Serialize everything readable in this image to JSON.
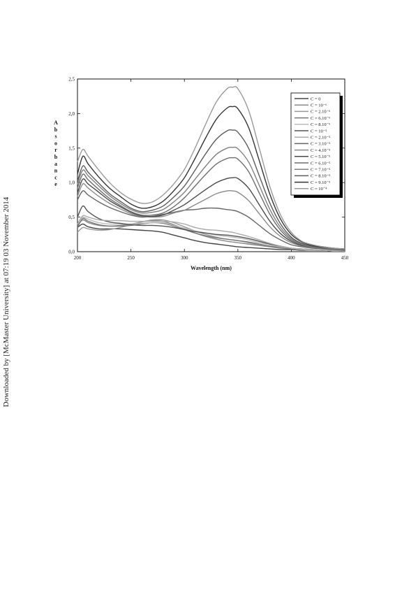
{
  "side_note": "Downloaded by [McMaster University] at 07:19 03 November 2014",
  "chart_data": {
    "type": "line",
    "title": "",
    "xlabel": "Wavelength (nm)",
    "ylabel": "Absorbance",
    "xlim": [
      200,
      450
    ],
    "ylim": [
      0,
      2.5
    ],
    "x_ticks": [
      200,
      250,
      300,
      350,
      400,
      450
    ],
    "y_ticks": [
      0,
      0.5,
      1.0,
      1.5,
      2.0,
      2.5
    ],
    "y_tick_labels": [
      "0,0",
      "0,5",
      "1,0",
      "1,5",
      "2,0",
      "2,5"
    ],
    "grid": false,
    "legend_position": "top-right",
    "legend": [
      "C = 0",
      "C = 10⁻⁶",
      "C = 2.10⁻⁶",
      "C = 6.10⁻⁶",
      "C = 8.10⁻⁶",
      "C = 10⁻⁵",
      "C = 2.10⁻⁵",
      "C = 3.10⁻⁵",
      "C = 4.10⁻⁵",
      "C = 5.10⁻⁵",
      "C = 6.10⁻⁵",
      "C = 7.10⁻⁵",
      "C = 8.10⁻⁵",
      "C = 9.10⁻⁵",
      "C = 10⁻⁴"
    ],
    "x": [
      200,
      205,
      210,
      220,
      230,
      240,
      250,
      260,
      270,
      280,
      290,
      300,
      310,
      320,
      330,
      340,
      345,
      350,
      360,
      370,
      380,
      390,
      400,
      410,
      420,
      430,
      440,
      450
    ],
    "series": [
      {
        "name": "C = 0",
        "color": "#444444",
        "values": [
          0.35,
          0.4,
          0.36,
          0.33,
          0.33,
          0.33,
          0.32,
          0.31,
          0.3,
          0.28,
          0.24,
          0.2,
          0.16,
          0.13,
          0.11,
          0.09,
          0.08,
          0.07,
          0.06,
          0.05,
          0.04,
          0.03,
          0.03,
          0.02,
          0.02,
          0.02,
          0.01,
          0.01
        ]
      },
      {
        "name": "C = 10⁻⁶",
        "color": "#888888",
        "values": [
          0.38,
          0.46,
          0.42,
          0.38,
          0.37,
          0.38,
          0.4,
          0.43,
          0.45,
          0.44,
          0.39,
          0.33,
          0.27,
          0.22,
          0.18,
          0.15,
          0.14,
          0.13,
          0.11,
          0.09,
          0.07,
          0.05,
          0.04,
          0.03,
          0.02,
          0.02,
          0.01,
          0.01
        ]
      },
      {
        "name": "C = 2.10⁻⁶",
        "color": "#999999",
        "values": [
          0.28,
          0.35,
          0.33,
          0.31,
          0.32,
          0.35,
          0.39,
          0.43,
          0.46,
          0.46,
          0.42,
          0.36,
          0.3,
          0.25,
          0.21,
          0.18,
          0.17,
          0.16,
          0.13,
          0.1,
          0.08,
          0.06,
          0.04,
          0.03,
          0.02,
          0.02,
          0.01,
          0.01
        ]
      },
      {
        "name": "C = 6.10⁻⁶",
        "color": "#777777",
        "values": [
          0.35,
          0.48,
          0.44,
          0.39,
          0.37,
          0.37,
          0.38,
          0.4,
          0.42,
          0.41,
          0.37,
          0.32,
          0.27,
          0.23,
          0.2,
          0.18,
          0.17,
          0.16,
          0.14,
          0.11,
          0.08,
          0.06,
          0.04,
          0.03,
          0.02,
          0.02,
          0.01,
          0.01
        ]
      },
      {
        "name": "C = 8.10⁻⁶",
        "color": "#bbbbbb",
        "values": [
          0.4,
          0.5,
          0.47,
          0.42,
          0.4,
          0.4,
          0.4,
          0.41,
          0.42,
          0.42,
          0.38,
          0.34,
          0.3,
          0.27,
          0.24,
          0.22,
          0.21,
          0.2,
          0.17,
          0.13,
          0.1,
          0.07,
          0.05,
          0.03,
          0.02,
          0.02,
          0.01,
          0.01
        ]
      },
      {
        "name": "C = 10⁻⁵",
        "color": "#555555",
        "values": [
          0.5,
          0.66,
          0.58,
          0.48,
          0.43,
          0.41,
          0.39,
          0.38,
          0.38,
          0.37,
          0.35,
          0.32,
          0.29,
          0.27,
          0.25,
          0.24,
          0.23,
          0.22,
          0.19,
          0.15,
          0.11,
          0.08,
          0.05,
          0.04,
          0.03,
          0.02,
          0.02,
          0.01
        ]
      },
      {
        "name": "C = 2.10⁻⁵",
        "color": "#aaaaaa",
        "values": [
          0.4,
          0.52,
          0.5,
          0.46,
          0.45,
          0.45,
          0.44,
          0.44,
          0.44,
          0.44,
          0.43,
          0.4,
          0.35,
          0.32,
          0.31,
          0.29,
          0.28,
          0.26,
          0.22,
          0.17,
          0.12,
          0.08,
          0.05,
          0.04,
          0.03,
          0.02,
          0.02,
          0.01
        ]
      },
      {
        "name": "C = 3.10⁻⁵",
        "color": "#666666",
        "values": [
          0.75,
          0.88,
          0.82,
          0.72,
          0.64,
          0.58,
          0.53,
          0.5,
          0.51,
          0.54,
          0.57,
          0.6,
          0.61,
          0.63,
          0.63,
          0.61,
          0.6,
          0.58,
          0.5,
          0.38,
          0.26,
          0.17,
          0.1,
          0.07,
          0.05,
          0.04,
          0.03,
          0.02
        ]
      },
      {
        "name": "C = 4.10⁻⁵",
        "color": "#8a8a8a",
        "values": [
          0.8,
          0.98,
          0.92,
          0.8,
          0.7,
          0.62,
          0.55,
          0.51,
          0.5,
          0.51,
          0.56,
          0.6,
          0.68,
          0.76,
          0.84,
          0.88,
          0.88,
          0.86,
          0.74,
          0.55,
          0.36,
          0.22,
          0.13,
          0.08,
          0.06,
          0.05,
          0.04,
          0.03
        ]
      },
      {
        "name": "C = 5.10⁻⁵",
        "color": "#4a4a4a",
        "values": [
          0.85,
          1.05,
          0.98,
          0.86,
          0.74,
          0.65,
          0.57,
          0.52,
          0.51,
          0.53,
          0.6,
          0.68,
          0.79,
          0.9,
          1.0,
          1.06,
          1.07,
          1.06,
          0.92,
          0.68,
          0.44,
          0.26,
          0.15,
          0.09,
          0.07,
          0.05,
          0.04,
          0.03
        ]
      },
      {
        "name": "C = 6.10⁻⁵",
        "color": "#6e6e6e",
        "values": [
          0.92,
          1.12,
          1.04,
          0.9,
          0.77,
          0.67,
          0.58,
          0.53,
          0.53,
          0.56,
          0.65,
          0.78,
          0.95,
          1.12,
          1.27,
          1.35,
          1.36,
          1.34,
          1.16,
          0.85,
          0.54,
          0.31,
          0.17,
          0.1,
          0.07,
          0.05,
          0.04,
          0.03
        ]
      },
      {
        "name": "C = 7.10⁻⁵",
        "color": "#808080",
        "values": [
          0.98,
          1.18,
          1.1,
          0.95,
          0.81,
          0.7,
          0.61,
          0.56,
          0.57,
          0.61,
          0.72,
          0.86,
          1.05,
          1.24,
          1.41,
          1.5,
          1.51,
          1.49,
          1.3,
          0.96,
          0.61,
          0.35,
          0.19,
          0.11,
          0.08,
          0.06,
          0.04,
          0.03
        ]
      },
      {
        "name": "C = 8.10⁻⁵",
        "color": "#5c5c5c",
        "values": [
          1.02,
          1.24,
          1.15,
          0.99,
          0.84,
          0.73,
          0.63,
          0.58,
          0.6,
          0.66,
          0.79,
          0.95,
          1.18,
          1.42,
          1.63,
          1.75,
          1.76,
          1.73,
          1.5,
          1.1,
          0.7,
          0.4,
          0.21,
          0.12,
          0.08,
          0.06,
          0.05,
          0.03
        ]
      },
      {
        "name": "C = 9.10⁻⁵",
        "color": "#333333",
        "values": [
          1.12,
          1.38,
          1.27,
          1.08,
          0.92,
          0.8,
          0.69,
          0.63,
          0.65,
          0.73,
          0.88,
          1.07,
          1.35,
          1.65,
          1.92,
          2.08,
          2.1,
          2.07,
          1.8,
          1.32,
          0.83,
          0.47,
          0.25,
          0.14,
          0.09,
          0.07,
          0.05,
          0.04
        ]
      },
      {
        "name": "C = 10⁻⁴",
        "color": "#9a9a9a",
        "values": [
          1.3,
          1.48,
          1.38,
          1.18,
          1.0,
          0.86,
          0.76,
          0.7,
          0.72,
          0.82,
          0.98,
          1.19,
          1.5,
          1.85,
          2.17,
          2.36,
          2.38,
          2.36,
          2.05,
          1.5,
          0.94,
          0.53,
          0.28,
          0.15,
          0.1,
          0.07,
          0.05,
          0.04
        ]
      }
    ]
  }
}
